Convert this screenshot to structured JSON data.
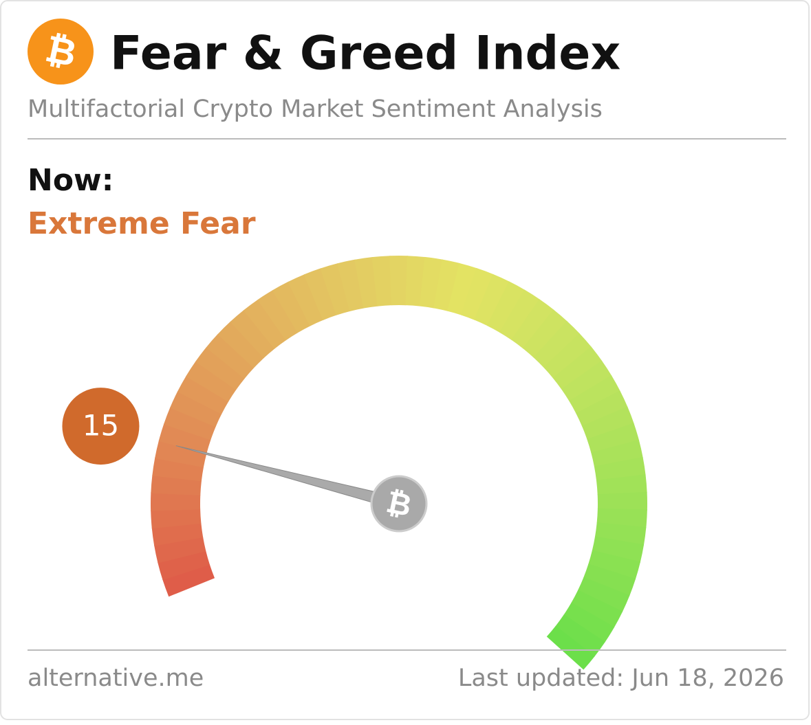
{
  "header": {
    "title": "Fear & Greed Index",
    "subtitle": "Multifactorial Crypto Market Sentiment Analysis"
  },
  "chart_data": {
    "type": "gauge",
    "label": "Now:",
    "classification": "Extreme Fear",
    "value": 15,
    "ylim": [
      0,
      100
    ]
  },
  "footer": {
    "source": "alternative.me",
    "updated": "Last updated: Jun 18, 2026"
  }
}
